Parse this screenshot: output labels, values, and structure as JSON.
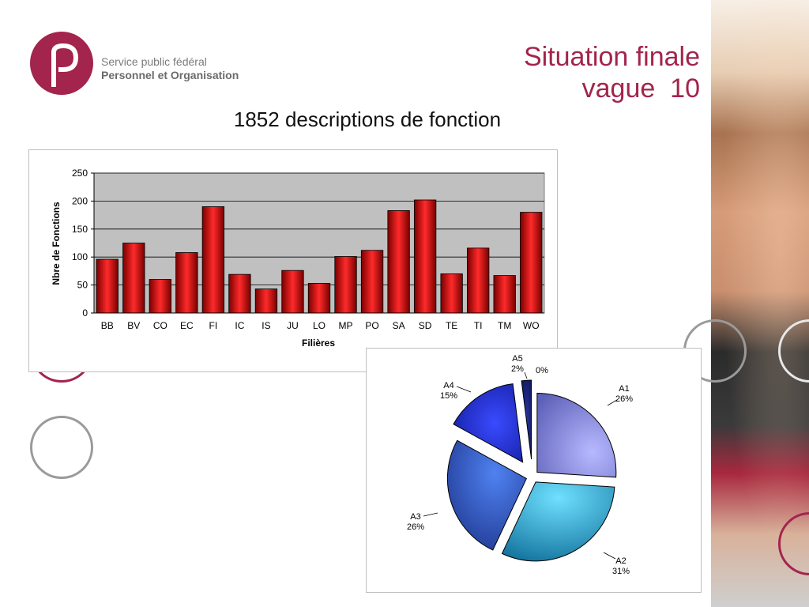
{
  "header": {
    "logo_line1": "Service public fédéral",
    "logo_line2": "Personnel et Organisation",
    "title_line1": "Situation finale",
    "title_line2": "vague  10",
    "subtitle": "1852 descriptions de fonction"
  },
  "colors": {
    "brand": "#a3244c",
    "bar": "#c00000",
    "plot_bg": "#c0c0c0"
  },
  "chart_data": [
    {
      "type": "bar",
      "title": "",
      "xlabel": "Filières",
      "ylabel": "Nbre de Fonctions",
      "ylim": [
        0,
        250
      ],
      "yticks": [
        0,
        50,
        100,
        150,
        200,
        250
      ],
      "grid": true,
      "categories": [
        "BB",
        "BV",
        "CO",
        "EC",
        "FI",
        "IC",
        "IS",
        "JU",
        "LO",
        "MP",
        "PO",
        "SA",
        "SD",
        "TE",
        "TI",
        "TM",
        "WO"
      ],
      "values": [
        96,
        125,
        60,
        108,
        190,
        69,
        43,
        76,
        53,
        101,
        112,
        183,
        202,
        70,
        116,
        67,
        180
      ]
    },
    {
      "type": "pie",
      "title": "",
      "slices": [
        {
          "label": "A1",
          "pct_label": "26%",
          "value": 26,
          "color": "#8f93f0"
        },
        {
          "label": "A2",
          "pct_label": "31%",
          "value": 31,
          "color": "#2aa6d6"
        },
        {
          "label": "A3",
          "pct_label": "26%",
          "value": 26,
          "color": "#2f5fc8"
        },
        {
          "label": "A4",
          "pct_label": "15%",
          "value": 15,
          "color": "#1f2ee0"
        },
        {
          "label": "A5",
          "pct_label": "2%",
          "value": 2,
          "color": "#101a70"
        },
        {
          "label": "",
          "pct_label": "0%",
          "value": 0,
          "color": "#000000"
        }
      ]
    }
  ]
}
